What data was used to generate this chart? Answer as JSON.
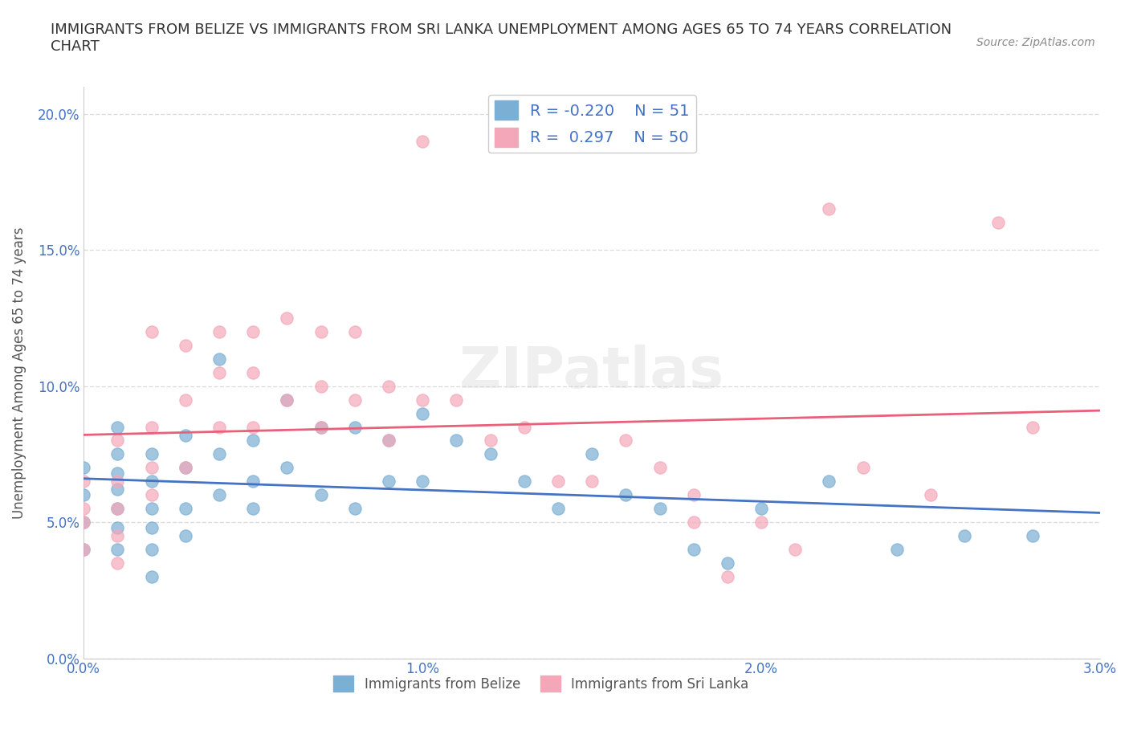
{
  "title": "IMMIGRANTS FROM BELIZE VS IMMIGRANTS FROM SRI LANKA UNEMPLOYMENT AMONG AGES 65 TO 74 YEARS CORRELATION\nCHART",
  "source": "Source: ZipAtlas.com",
  "xlabel": "",
  "ylabel": "Unemployment Among Ages 65 to 74 years",
  "xlim": [
    0.0,
    0.03
  ],
  "ylim": [
    0.0,
    0.21
  ],
  "xticks": [
    0.0,
    0.005,
    0.01,
    0.015,
    0.02,
    0.025,
    0.03
  ],
  "xticklabels": [
    "0.0%",
    "",
    "1.0%",
    "",
    "2.0%",
    "",
    "3.0%"
  ],
  "yticks": [
    0.0,
    0.05,
    0.1,
    0.15,
    0.2
  ],
  "yticklabels": [
    "0.0%",
    "5.0%",
    "10.0%",
    "15.0%",
    "20.0%"
  ],
  "belize_color": "#7bafd4",
  "srilanka_color": "#f4a7b9",
  "belize_line_color": "#4472c4",
  "srilanka_line_color": "#e8607a",
  "belize_R": -0.22,
  "belize_N": 51,
  "srilanka_R": 0.297,
  "srilanka_N": 50,
  "watermark": "ZIPatlas",
  "legend_R_label": "R = ",
  "legend_N_label": "N = ",
  "belize_x": [
    0.0,
    0.0,
    0.0,
    0.0,
    0.001,
    0.001,
    0.001,
    0.001,
    0.001,
    0.001,
    0.001,
    0.002,
    0.002,
    0.002,
    0.002,
    0.002,
    0.002,
    0.003,
    0.003,
    0.003,
    0.003,
    0.004,
    0.004,
    0.004,
    0.005,
    0.005,
    0.005,
    0.006,
    0.006,
    0.007,
    0.007,
    0.008,
    0.008,
    0.009,
    0.009,
    0.01,
    0.01,
    0.011,
    0.012,
    0.013,
    0.014,
    0.015,
    0.016,
    0.017,
    0.018,
    0.019,
    0.02,
    0.022,
    0.024,
    0.026,
    0.028
  ],
  "belize_y": [
    0.07,
    0.06,
    0.05,
    0.04,
    0.085,
    0.075,
    0.068,
    0.062,
    0.055,
    0.048,
    0.04,
    0.075,
    0.065,
    0.055,
    0.048,
    0.04,
    0.03,
    0.082,
    0.07,
    0.055,
    0.045,
    0.11,
    0.075,
    0.06,
    0.08,
    0.065,
    0.055,
    0.095,
    0.07,
    0.085,
    0.06,
    0.085,
    0.055,
    0.08,
    0.065,
    0.09,
    0.065,
    0.08,
    0.075,
    0.065,
    0.055,
    0.075,
    0.06,
    0.055,
    0.04,
    0.035,
    0.055,
    0.065,
    0.04,
    0.045,
    0.045
  ],
  "srilanka_x": [
    0.0,
    0.0,
    0.0,
    0.0,
    0.001,
    0.001,
    0.001,
    0.001,
    0.001,
    0.002,
    0.002,
    0.002,
    0.002,
    0.003,
    0.003,
    0.003,
    0.004,
    0.004,
    0.004,
    0.005,
    0.005,
    0.005,
    0.006,
    0.006,
    0.007,
    0.007,
    0.007,
    0.008,
    0.008,
    0.009,
    0.009,
    0.01,
    0.01,
    0.011,
    0.012,
    0.013,
    0.014,
    0.015,
    0.016,
    0.017,
    0.018,
    0.018,
    0.019,
    0.02,
    0.021,
    0.022,
    0.023,
    0.025,
    0.027,
    0.028
  ],
  "srilanka_y": [
    0.065,
    0.055,
    0.05,
    0.04,
    0.08,
    0.065,
    0.055,
    0.045,
    0.035,
    0.12,
    0.085,
    0.07,
    0.06,
    0.115,
    0.095,
    0.07,
    0.12,
    0.105,
    0.085,
    0.12,
    0.105,
    0.085,
    0.125,
    0.095,
    0.12,
    0.1,
    0.085,
    0.12,
    0.095,
    0.1,
    0.08,
    0.19,
    0.095,
    0.095,
    0.08,
    0.085,
    0.065,
    0.065,
    0.08,
    0.07,
    0.06,
    0.05,
    0.03,
    0.05,
    0.04,
    0.165,
    0.07,
    0.06,
    0.16,
    0.085
  ],
  "grid_color": "#dddddd",
  "background_color": "#ffffff",
  "title_color": "#333333",
  "axis_color": "#555555",
  "tick_color": "#4472c4",
  "legend_text_color": "#4472c4"
}
